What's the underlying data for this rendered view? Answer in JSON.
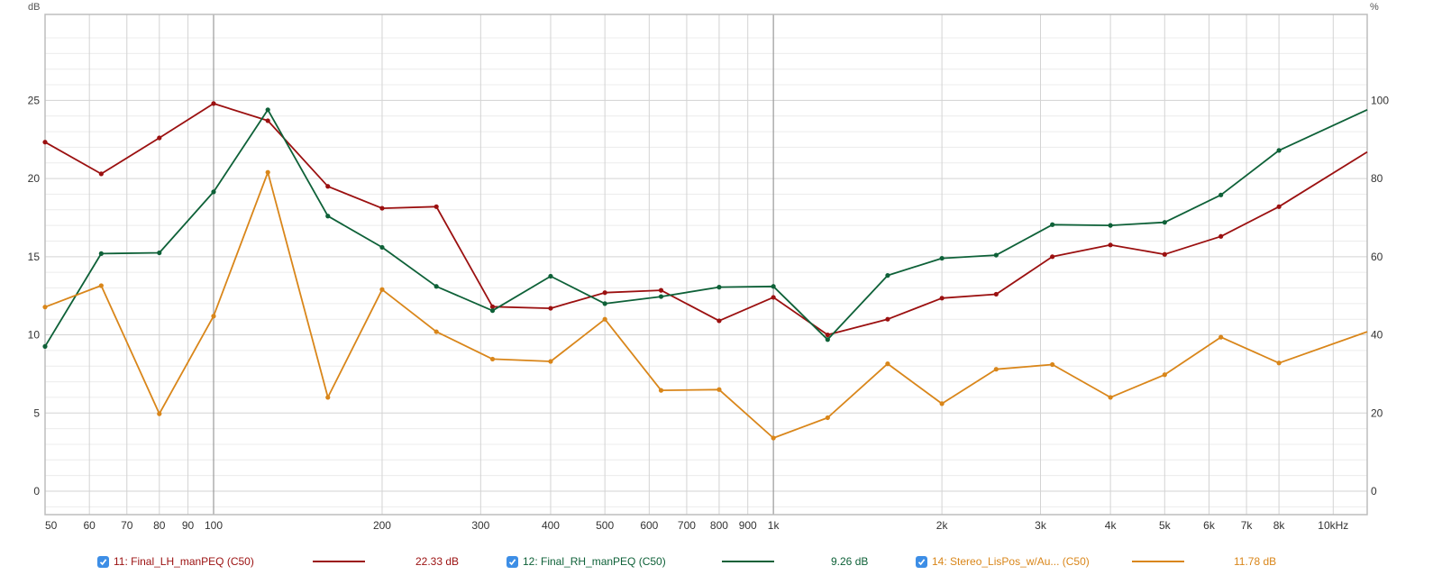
{
  "chart_data": {
    "type": "line",
    "title": "",
    "xlabel": "",
    "ylabel_left": "dB",
    "ylabel_right": "%",
    "x_scale": "log",
    "xlim": [
      50,
      11500
    ],
    "ylim_left": [
      -1.5,
      30.5
    ],
    "ylim_right": [
      -6,
      122
    ],
    "grid": true,
    "x_ticks": [
      {
        "v": 50,
        "label": "50"
      },
      {
        "v": 60,
        "label": "60"
      },
      {
        "v": 70,
        "label": "70"
      },
      {
        "v": 80,
        "label": "80"
      },
      {
        "v": 90,
        "label": "90"
      },
      {
        "v": 100,
        "label": "100"
      },
      {
        "v": 200,
        "label": "200"
      },
      {
        "v": 300,
        "label": "300"
      },
      {
        "v": 400,
        "label": "400"
      },
      {
        "v": 500,
        "label": "500"
      },
      {
        "v": 600,
        "label": "600"
      },
      {
        "v": 700,
        "label": "700"
      },
      {
        "v": 800,
        "label": "800"
      },
      {
        "v": 900,
        "label": "900"
      },
      {
        "v": 1000,
        "label": "1k"
      },
      {
        "v": 2000,
        "label": "2k"
      },
      {
        "v": 3000,
        "label": "3k"
      },
      {
        "v": 4000,
        "label": "4k"
      },
      {
        "v": 5000,
        "label": "5k"
      },
      {
        "v": 6000,
        "label": "6k"
      },
      {
        "v": 7000,
        "label": "7k"
      },
      {
        "v": 8000,
        "label": "8k"
      },
      {
        "v": 10000,
        "label": "10kHz"
      }
    ],
    "y_ticks_left": [
      0,
      5,
      10,
      15,
      20,
      25
    ],
    "y_ticks_right": [
      0,
      20,
      40,
      60,
      80,
      100
    ],
    "x": [
      50,
      63,
      80,
      100,
      125,
      160,
      200,
      250,
      315,
      400,
      500,
      630,
      800,
      1000,
      1250,
      1600,
      2000,
      2500,
      3150,
      4000,
      5000,
      6300,
      8000,
      11500
    ],
    "series": [
      {
        "name": "11: Final_LH_manPEQ (C50)",
        "color": "#9b1010",
        "readout": "22.33 dB",
        "values": [
          22.33,
          20.3,
          22.6,
          24.8,
          23.7,
          19.5,
          18.1,
          18.2,
          11.8,
          11.7,
          12.7,
          12.85,
          10.9,
          12.4,
          10.0,
          11.0,
          12.35,
          12.6,
          15.0,
          15.75,
          15.15,
          16.3,
          18.2,
          21.7
        ]
      },
      {
        "name": "12: Final_RH_manPEQ (C50)",
        "color": "#0e6138",
        "readout": "9.26 dB",
        "values": [
          9.26,
          15.2,
          15.25,
          19.15,
          24.4,
          17.6,
          15.6,
          13.1,
          11.55,
          13.75,
          12.0,
          12.45,
          13.05,
          13.1,
          9.7,
          13.8,
          14.9,
          15.1,
          17.05,
          17.0,
          17.2,
          18.95,
          21.8,
          24.4
        ]
      },
      {
        "name": "14: Stereo_LisPos_w/Au... (C50)",
        "color": "#d9861a",
        "readout": "11.78 dB",
        "values": [
          11.78,
          13.15,
          4.95,
          11.2,
          20.4,
          6.0,
          12.9,
          10.2,
          8.45,
          8.3,
          11.0,
          6.45,
          6.5,
          3.4,
          4.7,
          8.15,
          5.6,
          7.8,
          8.1,
          6.0,
          7.45,
          9.85,
          8.2,
          10.2
        ]
      }
    ]
  }
}
